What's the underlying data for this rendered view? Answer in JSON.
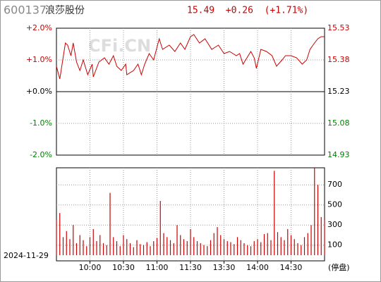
{
  "header": {
    "code": "600137",
    "name": "浪莎股份",
    "quote": "15.49  +0.26  (+1.71%)",
    "watermark": "CFi.CN"
  },
  "chart_data": [
    {
      "type": "line",
      "x": [
        0,
        3,
        8,
        10,
        13,
        15,
        18,
        21,
        24,
        28,
        32,
        33,
        38,
        43,
        47,
        51,
        54,
        58,
        62,
        63,
        69,
        73,
        76,
        79,
        83,
        87,
        92,
        95,
        101,
        106,
        111,
        115,
        120,
        123,
        128,
        133,
        139,
        145,
        150,
        155,
        161,
        164,
        167,
        174,
        177,
        179,
        183,
        188,
        193,
        197,
        202,
        205,
        210,
        215,
        220,
        224,
        227,
        231,
        234,
        237,
        240
      ],
      "series": [
        {
          "name": "price",
          "color": "#cc0000",
          "values": [
            15.35,
            15.29,
            15.46,
            15.45,
            15.4,
            15.46,
            15.37,
            15.33,
            15.38,
            15.31,
            15.36,
            15.3,
            15.37,
            15.39,
            15.36,
            15.4,
            15.35,
            15.33,
            15.36,
            15.31,
            15.33,
            15.36,
            15.31,
            15.36,
            15.41,
            15.38,
            15.48,
            15.43,
            15.45,
            15.42,
            15.46,
            15.43,
            15.49,
            15.5,
            15.46,
            15.48,
            15.43,
            15.45,
            15.41,
            15.42,
            15.4,
            15.41,
            15.36,
            15.42,
            15.39,
            15.34,
            15.43,
            15.42,
            15.4,
            15.35,
            15.38,
            15.4,
            15.4,
            15.39,
            15.36,
            15.38,
            15.43,
            15.46,
            15.48,
            15.49,
            15.49
          ]
        }
      ],
      "xlim": [
        0,
        240
      ],
      "ylim": [
        14.93,
        15.53
      ],
      "yticks": [
        15.53,
        15.38,
        15.23,
        15.08,
        14.93
      ],
      "y2lim": [
        -2,
        2
      ],
      "y2ticks": [
        {
          "value": 2,
          "label": "+2.0%"
        },
        {
          "value": 1,
          "label": "+1.0%"
        },
        {
          "value": 0,
          "label": "+0.0%"
        },
        {
          "value": -1,
          "label": "-1.0%"
        },
        {
          "value": -2,
          "label": "-2.0%"
        }
      ],
      "up_color": "#cc0000",
      "down_color": "#008000",
      "grid": true
    },
    {
      "type": "bar",
      "color": "#cc0000",
      "x": [
        0,
        3,
        6,
        9,
        12,
        15,
        18,
        21,
        24,
        27,
        30,
        33,
        36,
        39,
        42,
        45,
        48,
        51,
        54,
        57,
        60,
        63,
        66,
        69,
        72,
        75,
        78,
        81,
        84,
        87,
        90,
        93,
        96,
        99,
        102,
        105,
        108,
        111,
        114,
        117,
        120,
        123,
        126,
        129,
        132,
        135,
        138,
        141,
        144,
        147,
        150,
        153,
        156,
        159,
        162,
        165,
        168,
        171,
        174,
        177,
        180,
        183,
        186,
        189,
        192,
        195,
        198,
        201,
        204,
        207,
        210,
        213,
        216,
        219,
        222,
        225,
        228,
        231,
        234,
        237,
        240
      ],
      "values": [
        350,
        420,
        180,
        240,
        160,
        300,
        120,
        200,
        150,
        90,
        180,
        260,
        140,
        200,
        120,
        100,
        620,
        180,
        140,
        90,
        200,
        160,
        120,
        80,
        150,
        110,
        100,
        130,
        90,
        140,
        170,
        540,
        220,
        180,
        150,
        120,
        300,
        200,
        160,
        140,
        260,
        180,
        140,
        120,
        100,
        90,
        150,
        220,
        280,
        200,
        160,
        140,
        130,
        110,
        180,
        150,
        120,
        100,
        90,
        140,
        160,
        130,
        210,
        220,
        150,
        840,
        230,
        180,
        150,
        260,
        200,
        160,
        120,
        100,
        180,
        220,
        300,
        870,
        700,
        380,
        350
      ],
      "xlim": [
        0,
        240
      ],
      "xticks": [
        {
          "value": 30,
          "label": "10:00"
        },
        {
          "value": 60,
          "label": "10:30"
        },
        {
          "value": 90,
          "label": "11:00"
        },
        {
          "value": 120,
          "label": "11:30"
        },
        {
          "value": 150,
          "label": "13:30"
        },
        {
          "value": 180,
          "label": "14:00"
        },
        {
          "value": 210,
          "label": "14:30"
        }
      ],
      "ylim": [
        0,
        870
      ],
      "yticks": [
        100,
        300,
        500,
        700
      ],
      "date": "2024-11-29",
      "status": "(停盘)",
      "grid": true
    }
  ]
}
